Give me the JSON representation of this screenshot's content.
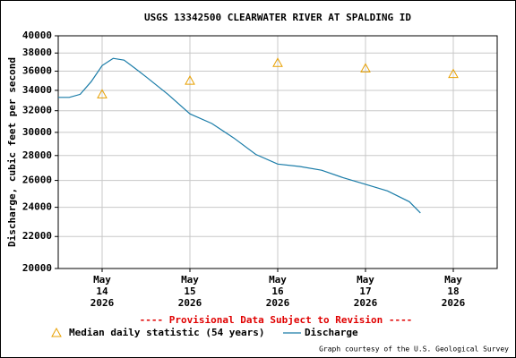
{
  "chart_data": {
    "type": "line",
    "title": "USGS 13342500 CLEARWATER RIVER AT SPALDING ID",
    "y_label": "Discharge, cubic feet per second",
    "log_y": true,
    "grid": true,
    "ylim": [
      20000,
      40000
    ],
    "yticks": [
      20000,
      22000,
      24000,
      26000,
      28000,
      30000,
      32000,
      34000,
      36000,
      38000,
      40000
    ],
    "xlim": [
      "2026-05-13T12:00",
      "2026-05-18T12:00"
    ],
    "xticks": [
      {
        "value": "2026-05-14",
        "label": [
          "May",
          "14",
          "2026"
        ]
      },
      {
        "value": "2026-05-15",
        "label": [
          "May",
          "15",
          "2026"
        ]
      },
      {
        "value": "2026-05-16",
        "label": [
          "May",
          "16",
          "2026"
        ]
      },
      {
        "value": "2026-05-17",
        "label": [
          "May",
          "17",
          "2026"
        ]
      },
      {
        "value": "2026-05-18",
        "label": [
          "May",
          "18",
          "2026"
        ]
      }
    ],
    "series": [
      {
        "name": "Median daily statistic (54 years)",
        "marker": "triangle",
        "color": "#e8a000",
        "x": [
          "2026-05-14",
          "2026-05-15",
          "2026-05-16",
          "2026-05-17",
          "2026-05-18"
        ],
        "values": [
          33600,
          35000,
          36900,
          36300,
          35700
        ]
      },
      {
        "name": "Discharge",
        "marker": "line",
        "color": "#1a7ca8",
        "x": [
          "2026-05-13T12:00",
          "2026-05-13T15:00",
          "2026-05-13T18:00",
          "2026-05-13T21:00",
          "2026-05-14T00:00",
          "2026-05-14T03:00",
          "2026-05-14T06:00",
          "2026-05-14T09:00",
          "2026-05-14T12:00",
          "2026-05-14T18:00",
          "2026-05-15T00:00",
          "2026-05-15T06:00",
          "2026-05-15T12:00",
          "2026-05-15T18:00",
          "2026-05-16T00:00",
          "2026-05-16T06:00",
          "2026-05-16T12:00",
          "2026-05-16T18:00",
          "2026-05-17T00:00",
          "2026-05-17T06:00",
          "2026-05-17T12:00",
          "2026-05-17T15:00"
        ],
        "values": [
          33300,
          33300,
          33600,
          34900,
          36600,
          37400,
          37200,
          36300,
          35400,
          33600,
          31700,
          30800,
          29500,
          28100,
          27300,
          27100,
          26800,
          26200,
          25700,
          25200,
          24400,
          23600
        ]
      }
    ],
    "footnote": "---- Provisional Data Subject to Revision ----",
    "credit": "Graph courtesy of the U.S. Geological Survey"
  }
}
